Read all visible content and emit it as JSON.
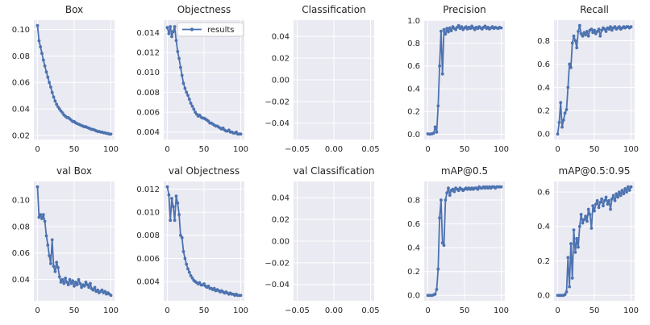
{
  "figure": {
    "background": "#ffffff",
    "axes_background": "#eaeaf2",
    "grid_color": "#ffffff",
    "line_color": "#4c72b0",
    "text_color": "#262626",
    "legend_label": "results"
  },
  "chart_data": {
    "type": "line",
    "layout": "2 rows x 5 cols, grid on, no spines, dot markers",
    "legend_position": "upper right of Objectness subplot",
    "x": [
      0,
      2,
      4,
      6,
      8,
      10,
      12,
      14,
      16,
      18,
      20,
      22,
      24,
      26,
      28,
      30,
      32,
      34,
      36,
      38,
      40,
      42,
      44,
      46,
      48,
      50,
      52,
      54,
      56,
      58,
      60,
      62,
      64,
      66,
      68,
      70,
      72,
      74,
      76,
      78,
      80,
      82,
      84,
      86,
      88,
      90,
      92,
      94,
      96,
      98,
      100
    ],
    "xlim": [
      -5,
      105
    ],
    "xticks": [
      0,
      50,
      100
    ],
    "xtick_labels": [
      "0",
      "50",
      "100"
    ],
    "charts": [
      {
        "title": "Box",
        "ylim": [
          0.0169,
          0.1071
        ],
        "yticks": [
          0.02,
          0.04,
          0.06,
          0.08,
          0.1
        ],
        "ytick_labels": [
          "0.02",
          "0.04",
          "0.06",
          "0.08",
          "0.10"
        ],
        "y": [
          0.103,
          0.0915,
          0.087,
          0.082,
          0.077,
          0.0725,
          0.068,
          0.064,
          0.06,
          0.0565,
          0.0525,
          0.049,
          0.046,
          0.0435,
          0.0415,
          0.04,
          0.0385,
          0.037,
          0.0355,
          0.0345,
          0.0335,
          0.0335,
          0.0325,
          0.0315,
          0.0305,
          0.0305,
          0.0295,
          0.029,
          0.0285,
          0.028,
          0.0275,
          0.027,
          0.0265,
          0.0265,
          0.026,
          0.0255,
          0.025,
          0.0245,
          0.0245,
          0.024,
          0.0235,
          0.023,
          0.023,
          0.0225,
          0.0225,
          0.022,
          0.022,
          0.0215,
          0.0215,
          0.021,
          0.021
        ]
      },
      {
        "title": "Objectness",
        "legend": "results",
        "ylim": [
          0.00325,
          0.01525
        ],
        "yticks": [
          0.004,
          0.006,
          0.008,
          0.01,
          0.012,
          0.014
        ],
        "ytick_labels": [
          "0.004",
          "0.006",
          "0.008",
          "0.010",
          "0.012",
          "0.014"
        ],
        "y": [
          0.0145,
          0.0139,
          0.0146,
          0.0136,
          0.0141,
          0.0146,
          0.0132,
          0.0121,
          0.0114,
          0.0105,
          0.0097,
          0.0089,
          0.0084,
          0.008,
          0.0077,
          0.0073,
          0.0069,
          0.0066,
          0.0063,
          0.006,
          0.0058,
          0.0056,
          0.0057,
          0.0055,
          0.0054,
          0.0054,
          0.0053,
          0.0052,
          0.0051,
          0.0049,
          0.0049,
          0.0048,
          0.0047,
          0.0046,
          0.0046,
          0.0045,
          0.0044,
          0.0043,
          0.0044,
          0.0042,
          0.0041,
          0.0041,
          0.0042,
          0.004,
          0.004,
          0.0039,
          0.0039,
          0.004,
          0.0038,
          0.0038,
          0.0038
        ]
      },
      {
        "title": "Classification",
        "empty": true,
        "xlim": [
          -0.055,
          0.055
        ],
        "xticks": [
          -0.05,
          0.0,
          0.05
        ],
        "xtick_labels": [
          "−0.05",
          "0.00",
          "0.05"
        ],
        "ylim": [
          -0.055,
          0.055
        ],
        "yticks": [
          0.04,
          0.02,
          0.0,
          -0.02,
          -0.04
        ],
        "ytick_labels": [
          "0.04",
          "0.02",
          "0.00",
          "−0.02",
          "−0.04"
        ],
        "y": []
      },
      {
        "title": "Precision",
        "ylim": [
          -0.0457,
          1.0027
        ],
        "yticks": [
          0.0,
          0.2,
          0.4,
          0.6,
          0.8,
          1.0
        ],
        "ytick_labels": [
          "0.0",
          "0.2",
          "0.4",
          "0.6",
          "0.8",
          "1.0"
        ],
        "y": [
          0.004,
          0.002,
          0.003,
          0.005,
          0.01,
          0.065,
          0.02,
          0.25,
          0.6,
          0.905,
          0.53,
          0.92,
          0.88,
          0.93,
          0.9,
          0.935,
          0.91,
          0.945,
          0.93,
          0.92,
          0.94,
          0.955,
          0.93,
          0.945,
          0.92,
          0.935,
          0.945,
          0.925,
          0.94,
          0.93,
          0.95,
          0.935,
          0.92,
          0.94,
          0.93,
          0.945,
          0.935,
          0.925,
          0.94,
          0.95,
          0.93,
          0.94,
          0.925,
          0.935,
          0.945,
          0.93,
          0.94,
          0.935,
          0.93,
          0.94,
          0.935
        ]
      },
      {
        "title": "Recall",
        "ylim": [
          -0.0465,
          0.9765
        ],
        "yticks": [
          0.0,
          0.2,
          0.4,
          0.6,
          0.8
        ],
        "ytick_labels": [
          "0.0",
          "0.2",
          "0.4",
          "0.6",
          "0.8"
        ],
        "y": [
          0.0,
          0.1,
          0.27,
          0.06,
          0.12,
          0.18,
          0.21,
          0.4,
          0.6,
          0.57,
          0.78,
          0.84,
          0.8,
          0.74,
          0.88,
          0.93,
          0.86,
          0.84,
          0.87,
          0.85,
          0.88,
          0.84,
          0.89,
          0.9,
          0.87,
          0.89,
          0.86,
          0.88,
          0.9,
          0.84,
          0.89,
          0.91,
          0.9,
          0.88,
          0.91,
          0.9,
          0.92,
          0.89,
          0.91,
          0.92,
          0.9,
          0.91,
          0.92,
          0.9,
          0.91,
          0.92,
          0.91,
          0.92,
          0.92,
          0.91,
          0.92
        ]
      },
      {
        "title": "val Box",
        "ylim": [
          0.0239,
          0.1141
        ],
        "yticks": [
          0.04,
          0.06,
          0.08,
          0.1
        ],
        "ytick_labels": [
          "0.04",
          "0.06",
          "0.08",
          "0.10"
        ],
        "y": [
          0.11,
          0.087,
          0.089,
          0.086,
          0.089,
          0.084,
          0.073,
          0.066,
          0.058,
          0.052,
          0.07,
          0.05,
          0.046,
          0.053,
          0.049,
          0.042,
          0.038,
          0.04,
          0.037,
          0.041,
          0.038,
          0.036,
          0.04,
          0.037,
          0.039,
          0.035,
          0.038,
          0.036,
          0.04,
          0.037,
          0.034,
          0.036,
          0.035,
          0.038,
          0.036,
          0.034,
          0.037,
          0.033,
          0.032,
          0.034,
          0.031,
          0.032,
          0.03,
          0.031,
          0.032,
          0.03,
          0.031,
          0.029,
          0.03,
          0.029,
          0.028
        ]
      },
      {
        "title": "val Objectness",
        "ylim": [
          0.00233,
          0.01267
        ],
        "yticks": [
          0.004,
          0.006,
          0.008,
          0.01,
          0.012
        ],
        "ytick_labels": [
          "0.004",
          "0.006",
          "0.008",
          "0.010",
          "0.012"
        ],
        "y": [
          0.0122,
          0.0115,
          0.0093,
          0.0112,
          0.0105,
          0.0093,
          0.0114,
          0.0108,
          0.0098,
          0.008,
          0.0078,
          0.0066,
          0.006,
          0.0055,
          0.0051,
          0.0048,
          0.0045,
          0.0043,
          0.0041,
          0.004,
          0.0039,
          0.0038,
          0.0039,
          0.0037,
          0.0037,
          0.0038,
          0.0036,
          0.0035,
          0.0036,
          0.0034,
          0.0034,
          0.0033,
          0.0034,
          0.0032,
          0.0033,
          0.0032,
          0.0031,
          0.0032,
          0.0031,
          0.003,
          0.0031,
          0.003,
          0.0029,
          0.003,
          0.0029,
          0.0029,
          0.0028,
          0.0029,
          0.0028,
          0.0028,
          0.0028
        ]
      },
      {
        "title": "val Classification",
        "empty": true,
        "xlim": [
          -0.055,
          0.055
        ],
        "xticks": [
          -0.05,
          0.0,
          0.05
        ],
        "xtick_labels": [
          "−0.05",
          "0.00",
          "0.05"
        ],
        "ylim": [
          -0.055,
          0.055
        ],
        "yticks": [
          0.04,
          0.02,
          0.0,
          -0.02,
          -0.04
        ],
        "ytick_labels": [
          "0.04",
          "0.02",
          "0.00",
          "−0.02",
          "−0.04"
        ],
        "y": []
      },
      {
        "title": "mAP@0.5",
        "ylim": [
          -0.0455,
          0.9555
        ],
        "yticks": [
          0.0,
          0.2,
          0.4,
          0.6,
          0.8
        ],
        "ytick_labels": [
          "0.0",
          "0.2",
          "0.4",
          "0.6",
          "0.8"
        ],
        "y": [
          0.0,
          0.0,
          0.0,
          0.0,
          0.005,
          0.01,
          0.05,
          0.22,
          0.65,
          0.8,
          0.44,
          0.42,
          0.8,
          0.86,
          0.9,
          0.84,
          0.88,
          0.89,
          0.87,
          0.9,
          0.89,
          0.88,
          0.9,
          0.89,
          0.88,
          0.89,
          0.9,
          0.89,
          0.9,
          0.89,
          0.9,
          0.89,
          0.9,
          0.9,
          0.89,
          0.91,
          0.9,
          0.9,
          0.91,
          0.9,
          0.91,
          0.9,
          0.91,
          0.9,
          0.91,
          0.91,
          0.9,
          0.91,
          0.91,
          0.91,
          0.91
        ]
      },
      {
        "title": "mAP@0.5:0.95",
        "ylim": [
          -0.0315,
          0.6615
        ],
        "yticks": [
          0.0,
          0.2,
          0.4,
          0.6
        ],
        "ytick_labels": [
          "0.0",
          "0.2",
          "0.4",
          "0.6"
        ],
        "y": [
          0.0,
          0.0,
          0.0,
          0.0,
          0.0,
          0.005,
          0.02,
          0.22,
          0.05,
          0.3,
          0.1,
          0.38,
          0.25,
          0.33,
          0.28,
          0.4,
          0.47,
          0.42,
          0.44,
          0.46,
          0.43,
          0.5,
          0.47,
          0.39,
          0.52,
          0.49,
          0.53,
          0.55,
          0.51,
          0.54,
          0.56,
          0.52,
          0.55,
          0.57,
          0.53,
          0.55,
          0.5,
          0.56,
          0.58,
          0.55,
          0.59,
          0.57,
          0.6,
          0.58,
          0.61,
          0.59,
          0.62,
          0.6,
          0.63,
          0.61,
          0.63
        ]
      }
    ]
  }
}
